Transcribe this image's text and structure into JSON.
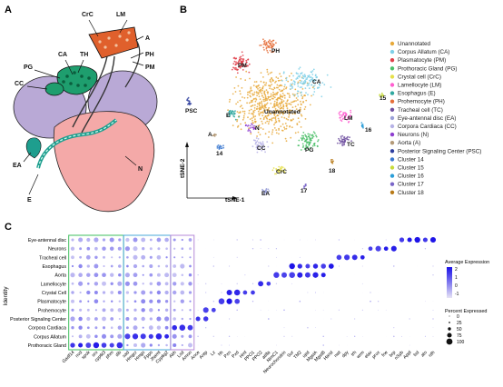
{
  "panelA": {
    "letter": "A",
    "labels": {
      "crc": "CrC",
      "lm": "LM",
      "th": "TH",
      "ca": "CA",
      "a": "A",
      "pg": "PG",
      "ph": "PH",
      "pm": "PM",
      "cc": "CC",
      "ea": "EA",
      "n": "N",
      "e": "E"
    },
    "colors": {
      "pg": "#1e9e6e",
      "crc": "#e0602c",
      "body": "#f4a9a8",
      "lobe": "#b9a9d6"
    }
  },
  "panelB": {
    "letter": "B",
    "axis_y": "tSNE-2",
    "axis_x": "tSNE-1",
    "cluster_labels": {
      "ph": "PH",
      "pm": "PM",
      "ca": "CA",
      "unannotated": "Unannotated",
      "psc": "PSC",
      "e": "E",
      "lm": "LM",
      "15": "15",
      "16": "16",
      "a": "A",
      "n": "N",
      "cc": "CC",
      "14": "14",
      "tc": "TC",
      "pg": "PG",
      "crc": "CrC",
      "18": "18",
      "ea": "EA",
      "17": "17"
    },
    "legend": [
      {
        "label": "Unannotated",
        "color": "#e7a93b"
      },
      {
        "label": "Corpus Allatum (CA)",
        "color": "#7fd0e8"
      },
      {
        "label": "Plasmatocyte (PM)",
        "color": "#e0404a"
      },
      {
        "label": "Prothoracic Gland (PG)",
        "color": "#4cc06a"
      },
      {
        "label": "Crystal cell (CrC)",
        "color": "#e6e04a"
      },
      {
        "label": "Lamellocyte (LM)",
        "color": "#ff5fd0"
      },
      {
        "label": "Esophagus (E)",
        "color": "#30a8a0"
      },
      {
        "label": "Prohemocyte (PH)",
        "color": "#e56f3a"
      },
      {
        "label": "Tracheal cell (TC)",
        "color": "#7050a0"
      },
      {
        "label": "Eye-antennal disc (EA)",
        "color": "#9aa0d8"
      },
      {
        "label": "Corpora Cardiaca (CC)",
        "color": "#b6b2e6"
      },
      {
        "label": "Neurons (N)",
        "color": "#8e3ed0"
      },
      {
        "label": "Aorta (A)",
        "color": "#b49a78"
      },
      {
        "label": "Posterior Signaling Center (PSC)",
        "color": "#2e3e9e"
      },
      {
        "label": "Cluster 14",
        "color": "#3a78d0"
      },
      {
        "label": "Cluster 15",
        "color": "#c8dc3a"
      },
      {
        "label": "Cluster 16",
        "color": "#2a9ed8"
      },
      {
        "label": "Cluster 17",
        "color": "#7a66c8"
      },
      {
        "label": "Cluster 18",
        "color": "#b87a18"
      }
    ]
  },
  "panelC": {
    "letter": "C",
    "ylabel": "Identity",
    "rows": [
      "Eye-antennal disc",
      "Neurons",
      "Tracheal cell",
      "Esophagus",
      "Aorta",
      "Lamellocyte",
      "Crystal Cell",
      "Plasmatocyte",
      "Prohemocyte",
      "Posterior Signaling Center",
      "Corpora Cardiaca",
      "Corpus Allatum",
      "Prothoracic Gland"
    ],
    "genes": [
      "Gadf14",
      "nvd",
      "spok",
      "sro",
      "cyp6t3",
      "phm",
      "dib",
      "sad",
      "Hmgcr",
      "Hmgs",
      "Fpps",
      "Jhamt",
      "Cyp6g2",
      "Akh",
      "Lsd",
      "Amon",
      "Ance",
      "Antp",
      "Lz",
      "hh",
      "Pxn",
      "Pxd",
      "Hml",
      "PPO1",
      "PPO2",
      "atilla",
      "NimC1",
      "Neurochondrin",
      "Sur",
      "TM2",
      "upd",
      "MgstA",
      "MgstB",
      "Hand",
      "nwt",
      "dpy",
      "trh",
      "wrm",
      "elav",
      "prox",
      "fne",
      "brp",
      "nSyb",
      "Appl",
      "lsd",
      "ato",
      "rdh"
    ],
    "legend": {
      "avg_title": "Average Expression",
      "avg_ticks": [
        "2",
        "1",
        "0",
        "-1"
      ],
      "pct_title": "Percent Expressed",
      "pct_ticks": [
        "0",
        "25",
        "50",
        "75",
        "100"
      ],
      "color_high": "#1a10e8",
      "color_low": "#e6e3f5"
    }
  }
}
